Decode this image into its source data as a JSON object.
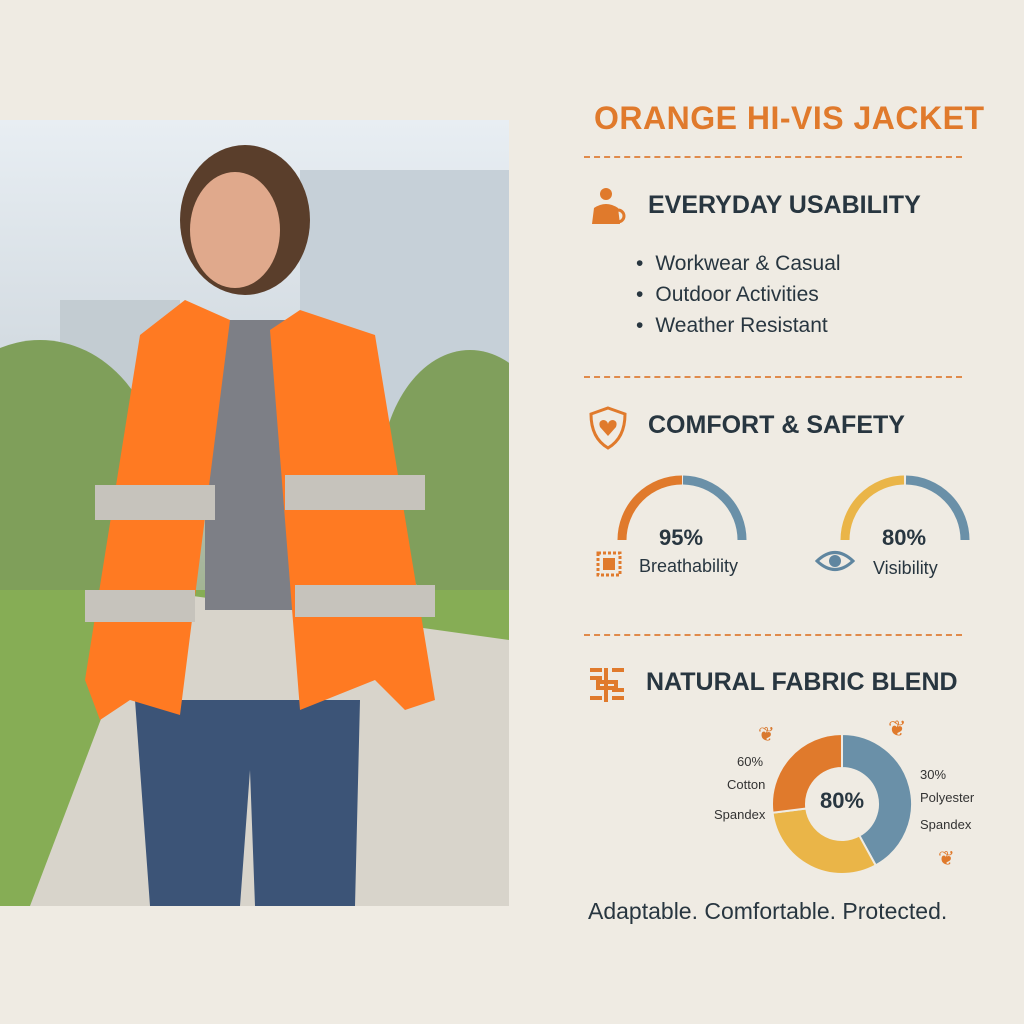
{
  "title": "ORANGE HI-VIS JACKET",
  "sections": {
    "usability": {
      "heading": "EVERYDAY USABILITY",
      "icon": "worker-icon",
      "items": [
        "Workwear & Casual",
        "Outdoor Activities",
        "Weather Resistant"
      ]
    },
    "comfort": {
      "heading": "COMFORT & SAFETY",
      "icon": "shield-heart-icon",
      "gauges": [
        {
          "value": "95%",
          "label": "Breathability",
          "icon": "fabric-grid-icon",
          "colors": [
            "#e07a2c",
            "#6a90a8"
          ]
        },
        {
          "value": "80%",
          "label": "Visibility",
          "icon": "eye-icon",
          "colors": [
            "#eab548",
            "#6a90a8"
          ]
        }
      ]
    },
    "fabric": {
      "heading": "NATURAL FABRIC BLEND",
      "icon": "weave-icon",
      "center": "80%",
      "left_pct": "60%",
      "left_label1": "Cotton",
      "left_label2": "Spandex",
      "right_pct": "30%",
      "right_label1": "Polyester",
      "right_label2": "Spandex"
    }
  },
  "chart_data": {
    "type": "pie",
    "donut": true,
    "center_label": "80%",
    "slices": [
      {
        "color": "#6a90a8",
        "value": 42
      },
      {
        "color": "#eab548",
        "value": 31
      },
      {
        "color": "#e07a2c",
        "value": 27
      }
    ]
  },
  "tagline": "Adaptable. Comfortable. Protected."
}
